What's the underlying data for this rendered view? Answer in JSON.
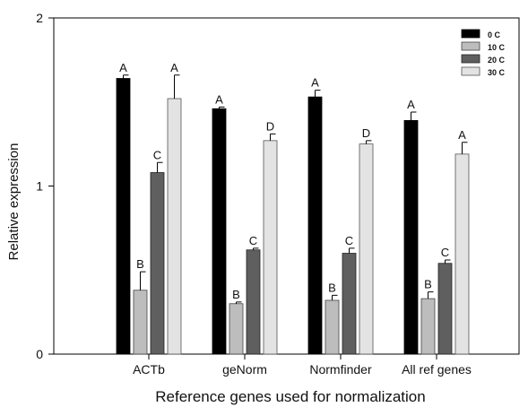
{
  "chart_data": {
    "type": "bar",
    "title": "",
    "xlabel": "Reference genes used for normalization",
    "ylabel": "Relative expression",
    "ylim": [
      0,
      2
    ],
    "yticks": [
      0,
      1,
      2
    ],
    "grid": false,
    "legend_position": "top-right",
    "categories": [
      "ACTb",
      "geNorm",
      "Normfinder",
      "All ref genes"
    ],
    "series": [
      {
        "name": "0 C",
        "color": "#000000",
        "values": [
          1.64,
          1.46,
          1.53,
          1.39
        ],
        "errors": [
          0.02,
          0.01,
          0.04,
          0.05
        ],
        "letters": [
          "A",
          "A",
          "A",
          "A"
        ]
      },
      {
        "name": "10 C",
        "color": "#bdbdbd",
        "values": [
          0.38,
          0.3,
          0.32,
          0.33
        ],
        "errors": [
          0.11,
          0.01,
          0.03,
          0.04
        ],
        "letters": [
          "B",
          "B",
          "B",
          "B"
        ]
      },
      {
        "name": "20 C",
        "color": "#5f5f5f",
        "values": [
          1.08,
          0.62,
          0.6,
          0.54
        ],
        "errors": [
          0.06,
          0.01,
          0.03,
          0.02
        ],
        "letters": [
          "C",
          "C",
          "C",
          "C"
        ]
      },
      {
        "name": "30 C",
        "color": "#e3e3e3",
        "values": [
          1.52,
          1.27,
          1.25,
          1.19
        ],
        "errors": [
          0.14,
          0.04,
          0.02,
          0.07
        ],
        "letters": [
          "A",
          "D",
          "D",
          "A"
        ]
      }
    ]
  }
}
